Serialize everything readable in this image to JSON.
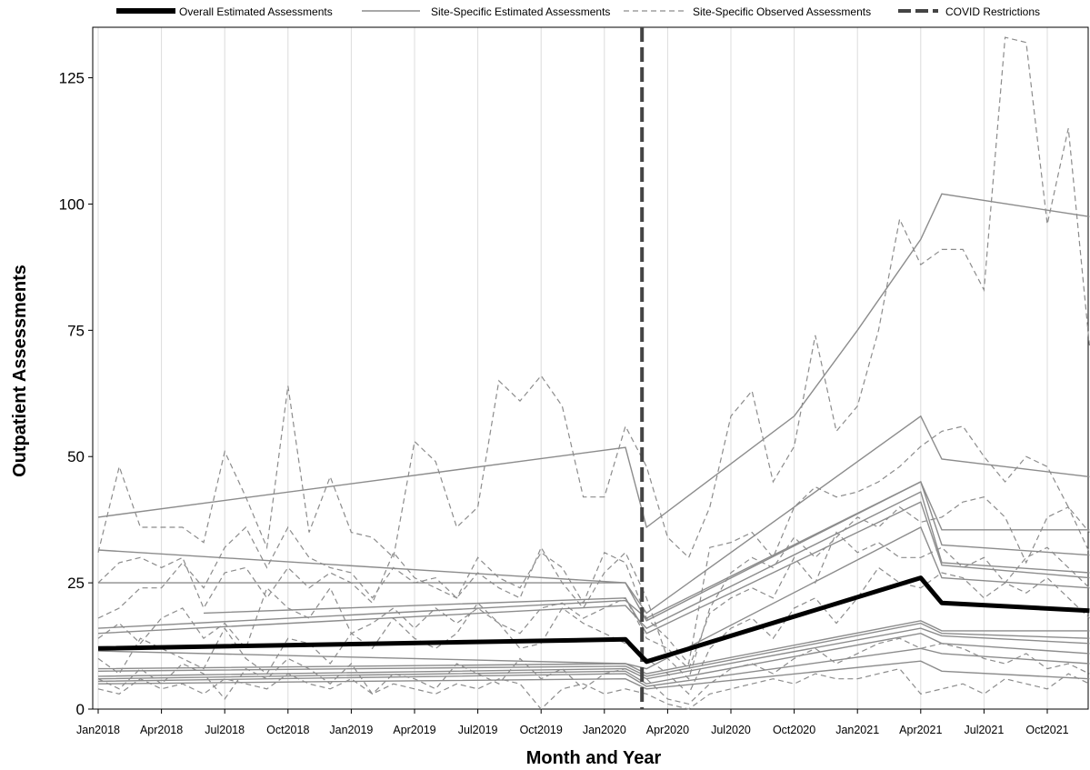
{
  "chart_data": {
    "type": "line",
    "xlabel": "Month and Year",
    "ylabel": "Outpatient Assessments",
    "x_ticks": [
      "Jan2018",
      "Apr2018",
      "Jul2018",
      "Oct2018",
      "Jan2019",
      "Apr2019",
      "Jul2019",
      "Oct2019",
      "Jan2020",
      "Apr2020",
      "Jul2020",
      "Oct2020",
      "Jan2021",
      "Apr2021",
      "Jul2021",
      "Oct2021"
    ],
    "x_range_months": [
      0,
      47
    ],
    "ylim": [
      0,
      135
    ],
    "y_ticks": [
      0,
      25,
      50,
      75,
      100,
      125
    ],
    "grid": "vertical lines at each x tick",
    "legend_position": "top",
    "legend": [
      {
        "label": "Overall Estimated Assessments",
        "style": "thick-solid",
        "color": "#000000"
      },
      {
        "label": "Site-Specific Estimated Assessments",
        "style": "thin-solid",
        "color": "#8c8c8c"
      },
      {
        "label": "Site-Specific Observed Assessments",
        "style": "thin-dashed",
        "color": "#8c8c8c"
      },
      {
        "label": "COVID Restrictions",
        "style": "thick-dashed",
        "color": "#444444"
      }
    ],
    "covid_restrictions_at": "Mar2020",
    "overall_estimated": {
      "x": [
        "Jan2018",
        "Feb2020",
        "Mar2020",
        "Apr2021",
        "May2021",
        "Dec2021"
      ],
      "y": [
        12,
        13.8,
        9.4,
        26,
        21,
        19.5
      ]
    },
    "site_specific_estimated": [
      {
        "x": [
          "Jan2018",
          "Feb2020",
          "Mar2020",
          "Oct2020",
          "Jan2021",
          "Apr2021",
          "May2021",
          "Dec2021"
        ],
        "y": [
          38,
          51.8,
          36,
          58,
          75,
          93,
          102,
          97.5
        ]
      },
      {
        "x": [
          "Jan2018",
          "Feb2020",
          "Mar2020",
          "Apr2021",
          "May2021",
          "Dec2021"
        ],
        "y": [
          31.5,
          25,
          19,
          58,
          49.5,
          46
        ]
      },
      {
        "x": [
          "Jan2018",
          "Feb2020",
          "Mar2020",
          "Apr2021",
          "May2021",
          "Dec2021"
        ],
        "y": [
          25,
          25,
          17.5,
          45,
          35.5,
          35.5
        ]
      },
      {
        "x": [
          "Jan2018",
          "Feb2020",
          "Mar2020",
          "Apr2021",
          "May2021",
          "Dec2021"
        ],
        "y": [
          16,
          21.5,
          18,
          45,
          32.5,
          30.5
        ]
      },
      {
        "x": [
          "Jan2018",
          "Feb2020",
          "Mar2020",
          "Apr2021",
          "May2021",
          "Dec2021"
        ],
        "y": [
          15,
          20.5,
          16,
          43,
          29,
          27
        ]
      },
      {
        "x": [
          "Jun2018",
          "Feb2020",
          "Mar2020",
          "Apr2021",
          "May2021",
          "Dec2021"
        ],
        "y": [
          19,
          22,
          15,
          41,
          28.5,
          26
        ]
      },
      {
        "x": [
          "Jan2018",
          "Feb2020",
          "Mar2020",
          "Apr2021",
          "May2021",
          "Dec2021"
        ],
        "y": [
          11.5,
          9,
          8,
          36,
          26,
          24
        ]
      },
      {
        "x": [
          "Jan2018",
          "Feb2020",
          "Mar2020",
          "Apr2021",
          "May2021",
          "Dec2021"
        ],
        "y": [
          8,
          9,
          7,
          17.5,
          15.5,
          15.5
        ]
      },
      {
        "x": [
          "Jan2018",
          "Feb2020",
          "Mar2020",
          "Apr2021",
          "May2021",
          "Dec2021"
        ],
        "y": [
          7.5,
          8.5,
          6.5,
          17,
          15,
          14
        ]
      },
      {
        "x": [
          "Jan2018",
          "Feb2020",
          "Mar2020",
          "Apr2021",
          "May2021",
          "Dec2021"
        ],
        "y": [
          6.5,
          8,
          6,
          16,
          14.5,
          13
        ]
      },
      {
        "x": [
          "Jan2018",
          "Feb2020",
          "Mar2020",
          "Apr2021",
          "May2021",
          "Dec2021"
        ],
        "y": [
          6,
          7.5,
          5,
          15,
          13,
          11
        ]
      },
      {
        "x": [
          "Jan2018",
          "Feb2020",
          "Mar2020",
          "Apr2021",
          "May2021",
          "Dec2021"
        ],
        "y": [
          5.5,
          7,
          4.5,
          12,
          11,
          9
        ]
      },
      {
        "x": [
          "Jan2018",
          "Feb2020",
          "Mar2020",
          "Apr2021",
          "May2021",
          "Dec2021"
        ],
        "y": [
          5,
          6,
          4,
          9.5,
          7.5,
          6
        ]
      }
    ],
    "site_specific_observed": [
      {
        "y": [
          31,
          48,
          36,
          36,
          36,
          33,
          51,
          42,
          32,
          64,
          35,
          46,
          35,
          34,
          30,
          53,
          49,
          36,
          40,
          65,
          61,
          66,
          60,
          42,
          42,
          56,
          48,
          34,
          30,
          40,
          58,
          63,
          45,
          52,
          74,
          55,
          60,
          75,
          97,
          88,
          91,
          91,
          83,
          133,
          132,
          96,
          115,
          72
        ]
      },
      {
        "y": [
          25,
          29,
          30,
          28,
          30,
          20,
          27,
          28,
          22,
          28,
          24,
          27,
          25,
          21,
          31,
          26,
          24,
          22,
          30,
          26,
          24,
          31,
          28,
          21,
          31,
          29,
          18,
          14,
          9,
          32,
          33,
          35,
          30,
          40,
          44,
          42,
          43,
          45,
          48,
          52,
          55,
          56,
          50,
          45,
          50,
          48,
          40,
          35
        ]
      },
      {
        "y": [
          18,
          20,
          24,
          24,
          29,
          24,
          32,
          36,
          28,
          36,
          30,
          28,
          27,
          22,
          28,
          25,
          26,
          22,
          27,
          24,
          22,
          32,
          25,
          20,
          27,
          31,
          22,
          10,
          6,
          20,
          27,
          30,
          28,
          34,
          30,
          34,
          38,
          36,
          40,
          37,
          38,
          41,
          42,
          38,
          29,
          38,
          40,
          31
        ]
      },
      {
        "y": [
          14,
          17,
          13,
          18,
          20,
          14,
          17,
          12,
          24,
          20,
          18,
          24,
          15,
          17,
          20,
          16,
          20,
          17,
          20,
          17,
          15,
          20,
          21,
          18,
          20,
          22,
          14,
          12,
          8,
          19,
          22,
          24,
          22,
          30,
          25,
          35,
          31,
          33,
          30,
          30,
          32,
          28,
          30,
          25,
          30,
          32,
          28,
          24
        ]
      },
      {
        "y": [
          10,
          7,
          14,
          12,
          10,
          8,
          16,
          10,
          7,
          14,
          13,
          9,
          15,
          12,
          18,
          14,
          12,
          15,
          21,
          17,
          12,
          13,
          20,
          17,
          15,
          13,
          10,
          7,
          3,
          12,
          16,
          18,
          14,
          20,
          22,
          17,
          22,
          28,
          25,
          24,
          27,
          26,
          22,
          25,
          23,
          26,
          22,
          18
        ]
      },
      {
        "y": [
          6,
          4,
          8,
          5,
          9,
          7,
          2,
          8,
          6,
          10,
          8,
          5,
          9,
          3,
          7,
          6,
          4,
          9,
          7,
          5,
          10,
          6,
          8,
          4,
          7,
          8,
          6,
          2,
          1,
          5,
          8,
          9,
          7,
          10,
          12,
          9,
          11,
          13,
          14,
          12,
          13,
          12,
          10,
          9,
          11,
          8,
          9,
          7
        ]
      },
      {
        "y": [
          4,
          3,
          6,
          4,
          5,
          3,
          6,
          5,
          4,
          7,
          5,
          4,
          6,
          3,
          5,
          4,
          3,
          5,
          4,
          6,
          5,
          0,
          4,
          5,
          3,
          4,
          3,
          1,
          0,
          3,
          4,
          5,
          6,
          5,
          7,
          6,
          6,
          7,
          8,
          3,
          4,
          5,
          3,
          6,
          5,
          4,
          7,
          5
        ]
      }
    ]
  }
}
